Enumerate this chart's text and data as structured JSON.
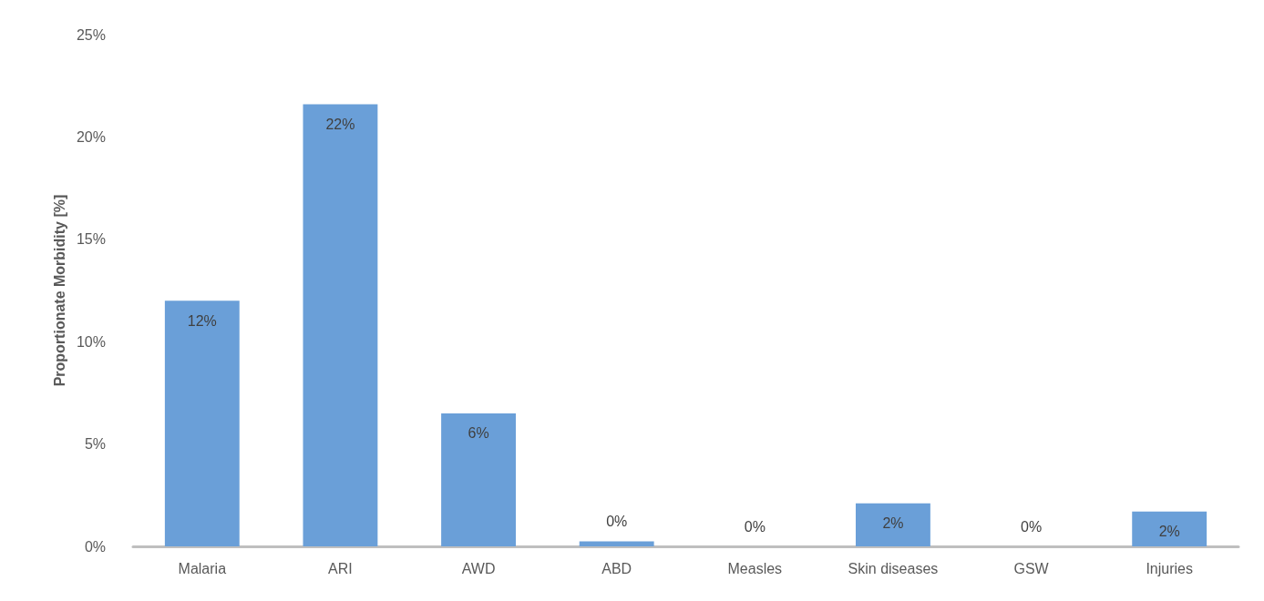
{
  "chart_data": {
    "type": "bar",
    "ylabel": "Proportionate Morbidity [%]",
    "categories": [
      "Malaria",
      "ARI",
      "AWD",
      "ABD",
      "Measles",
      "Skin diseases",
      "GSW",
      "Injuries"
    ],
    "values": [
      12.0,
      21.6,
      6.5,
      0.25,
      0,
      2.1,
      0,
      1.7
    ],
    "value_labels": [
      "12%",
      "22%",
      "6%",
      "0%",
      "0%",
      "2%",
      "0%",
      "2%"
    ],
    "color": "#6a9fd8",
    "ylim": [
      0,
      25
    ],
    "yticks": [
      {
        "value": 0,
        "label": "0%"
      },
      {
        "value": 5,
        "label": "5%"
      },
      {
        "value": 10,
        "label": "10%"
      },
      {
        "value": 15,
        "label": "15%"
      },
      {
        "value": 20,
        "label": "20%"
      },
      {
        "value": 25,
        "label": "25%"
      }
    ],
    "grid": false
  }
}
